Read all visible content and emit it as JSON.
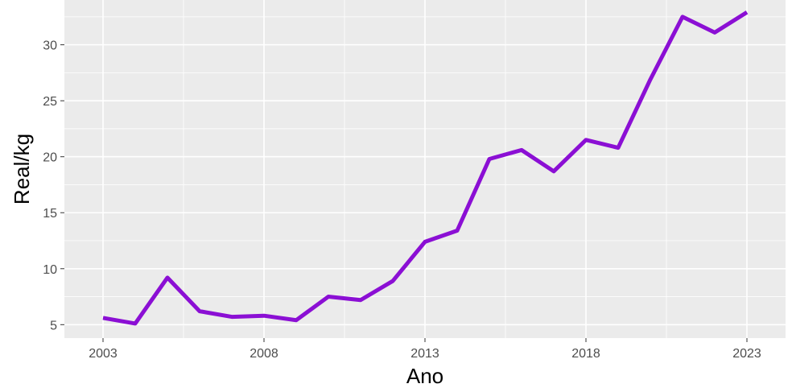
{
  "chart_data": {
    "type": "line",
    "title": "",
    "xlabel": "Ano",
    "ylabel": "Real/kg",
    "xlim": [
      2001.8,
      2024.2
    ],
    "ylim": [
      3.8,
      34
    ],
    "x_ticks": [
      2003,
      2008,
      2013,
      2018,
      2023
    ],
    "y_ticks": [
      5,
      10,
      15,
      20,
      25,
      30
    ],
    "grid": true,
    "legend": "none",
    "colors": {
      "panel": "#ebebeb",
      "grid": "#ffffff",
      "line": "#8b0fd4"
    },
    "series": [
      {
        "x": [
          2003,
          2004,
          2005,
          2006,
          2007,
          2008,
          2009,
          2010,
          2011,
          2012,
          2013,
          2014,
          2015,
          2016,
          2017,
          2018,
          2019,
          2020,
          2021,
          2022,
          2023
        ],
        "values": [
          5.6,
          5.1,
          9.2,
          6.2,
          5.7,
          5.8,
          5.4,
          7.5,
          7.2,
          8.9,
          12.4,
          13.4,
          19.8,
          20.6,
          18.7,
          21.5,
          20.8,
          26.9,
          32.5,
          31.1,
          32.9
        ]
      }
    ]
  }
}
